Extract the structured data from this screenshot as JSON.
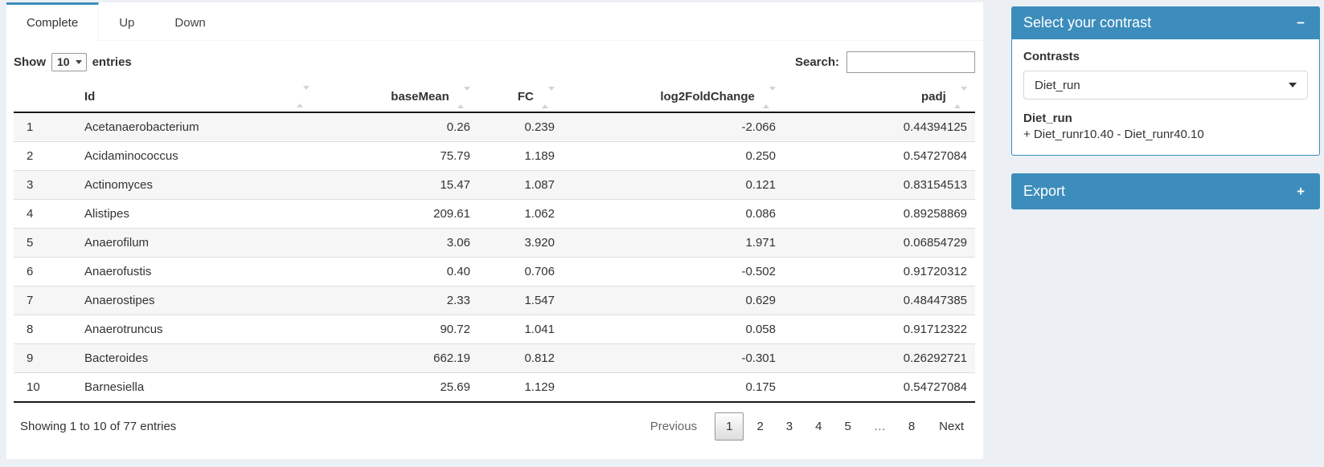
{
  "colors": {
    "primary_blue": "#3c8dbc",
    "page_background": "#ecf0f5",
    "table_stripe": "#f6f6f6",
    "row_border": "#dddddd",
    "dark_rule": "#1a1a1a"
  },
  "tabs": [
    {
      "label": "Complete",
      "active": true
    },
    {
      "label": "Up",
      "active": false
    },
    {
      "label": "Down",
      "active": false
    }
  ],
  "table_controls": {
    "show_label": "Show",
    "page_length": "10",
    "entries_label": "entries",
    "search_label": "Search:",
    "search_value": ""
  },
  "table": {
    "columns": [
      {
        "label": "Id"
      },
      {
        "label": "baseMean"
      },
      {
        "label": "FC"
      },
      {
        "label": "log2FoldChange"
      },
      {
        "label": "padj"
      }
    ],
    "rows": [
      {
        "num": "1",
        "id": "Acetanaerobacterium",
        "baseMean": "0.26",
        "fc": "0.239",
        "log2FoldChange": "-2.066",
        "padj": "0.44394125"
      },
      {
        "num": "2",
        "id": "Acidaminococcus",
        "baseMean": "75.79",
        "fc": "1.189",
        "log2FoldChange": "0.250",
        "padj": "0.54727084"
      },
      {
        "num": "3",
        "id": "Actinomyces",
        "baseMean": "15.47",
        "fc": "1.087",
        "log2FoldChange": "0.121",
        "padj": "0.83154513"
      },
      {
        "num": "4",
        "id": "Alistipes",
        "baseMean": "209.61",
        "fc": "1.062",
        "log2FoldChange": "0.086",
        "padj": "0.89258869"
      },
      {
        "num": "5",
        "id": "Anaerofilum",
        "baseMean": "3.06",
        "fc": "3.920",
        "log2FoldChange": "1.971",
        "padj": "0.06854729"
      },
      {
        "num": "6",
        "id": "Anaerofustis",
        "baseMean": "0.40",
        "fc": "0.706",
        "log2FoldChange": "-0.502",
        "padj": "0.91720312"
      },
      {
        "num": "7",
        "id": "Anaerostipes",
        "baseMean": "2.33",
        "fc": "1.547",
        "log2FoldChange": "0.629",
        "padj": "0.48447385"
      },
      {
        "num": "8",
        "id": "Anaerotruncus",
        "baseMean": "90.72",
        "fc": "1.041",
        "log2FoldChange": "0.058",
        "padj": "0.91712322"
      },
      {
        "num": "9",
        "id": "Bacteroides",
        "baseMean": "662.19",
        "fc": "0.812",
        "log2FoldChange": "-0.301",
        "padj": "0.26292721"
      },
      {
        "num": "10",
        "id": "Barnesiella",
        "baseMean": "25.69",
        "fc": "1.129",
        "log2FoldChange": "0.175",
        "padj": "0.54727084"
      }
    ]
  },
  "table_footer": {
    "info": "Showing 1 to 10 of 77 entries",
    "previous_label": "Previous",
    "pages": [
      "1",
      "2",
      "3",
      "4",
      "5",
      "…",
      "8"
    ],
    "active_page": "1",
    "next_label": "Next"
  },
  "contrast_panel": {
    "title": "Select your contrast",
    "collapse_icon": "−",
    "contrasts_label": "Contrasts",
    "selected_contrast": "Diet_run",
    "contrast_name": "Diet_run",
    "contrast_formula": "+ Diet_runr10.40 - Diet_runr40.10"
  },
  "export_panel": {
    "title": "Export",
    "expand_icon": "+"
  }
}
